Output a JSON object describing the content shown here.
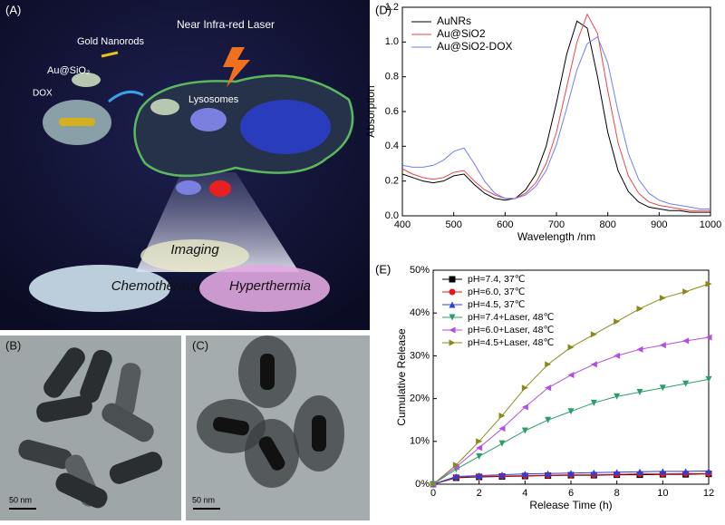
{
  "illustration": {
    "panel_label": "(A)",
    "gold_nanorods": "Gold Nanorods",
    "au_sio2": "Au@SiO₂",
    "dox": "DOX",
    "laser": "Near Infra-red Laser",
    "lysosomes": "Lysosomes",
    "imaging": "Imaging",
    "chemotherapy": "Chemotherapy",
    "hyperthermia": "Hyperthermia"
  },
  "micrographs": [
    {
      "panel_label": "(B)",
      "scale_bar": "50 nm"
    },
    {
      "panel_label": "(C)",
      "scale_bar": "50 nm"
    }
  ],
  "chart_data": [
    {
      "type": "line",
      "panel_label": "(D)",
      "x_label": "Wavelength /nm",
      "y_label": "Absorption",
      "x": [
        400,
        420,
        440,
        460,
        480,
        500,
        520,
        540,
        560,
        580,
        600,
        620,
        640,
        660,
        680,
        700,
        720,
        740,
        760,
        780,
        800,
        820,
        840,
        860,
        880,
        900,
        920,
        940,
        960,
        980,
        1000
      ],
      "series": [
        {
          "name": "AuNRs",
          "color": "#000000",
          "values": [
            0.24,
            0.22,
            0.2,
            0.19,
            0.2,
            0.23,
            0.24,
            0.18,
            0.13,
            0.1,
            0.09,
            0.1,
            0.15,
            0.24,
            0.4,
            0.65,
            0.93,
            1.12,
            1.08,
            0.8,
            0.48,
            0.26,
            0.14,
            0.08,
            0.05,
            0.04,
            0.03,
            0.03,
            0.02,
            0.02,
            0.02
          ]
        },
        {
          "name": "Au@SiO2",
          "color": "#e8474a",
          "values": [
            0.27,
            0.24,
            0.22,
            0.21,
            0.22,
            0.25,
            0.26,
            0.2,
            0.15,
            0.12,
            0.1,
            0.1,
            0.13,
            0.19,
            0.3,
            0.48,
            0.74,
            1.0,
            1.16,
            1.05,
            0.72,
            0.42,
            0.23,
            0.13,
            0.08,
            0.06,
            0.05,
            0.04,
            0.03,
            0.03,
            0.03
          ]
        },
        {
          "name": "Au@SiO2-DOX",
          "color": "#6f7ff0",
          "values": [
            0.29,
            0.28,
            0.28,
            0.29,
            0.32,
            0.37,
            0.39,
            0.3,
            0.2,
            0.13,
            0.1,
            0.1,
            0.12,
            0.17,
            0.26,
            0.41,
            0.62,
            0.84,
            0.99,
            1.03,
            0.88,
            0.6,
            0.36,
            0.21,
            0.13,
            0.09,
            0.07,
            0.06,
            0.05,
            0.04,
            0.04
          ]
        }
      ],
      "xlim": [
        400,
        1000
      ],
      "xticks": [
        400,
        500,
        600,
        700,
        800,
        900,
        1000
      ],
      "ylim": [
        0,
        1.2
      ],
      "yticks": [
        {
          "value": 0,
          "label": "0.0"
        },
        0.2,
        0.4,
        0.6,
        0.8,
        {
          "value": 1,
          "label": "1.0"
        },
        1.2
      ],
      "legend": "upper left",
      "grid": false
    },
    {
      "type": "line",
      "panel_label": "(E)",
      "x_label": "Release Time (h)",
      "y_label": "Cumulative Release",
      "x": [
        0,
        1,
        2,
        3,
        4,
        5,
        6,
        7,
        8,
        9,
        10,
        11,
        12
      ],
      "series": [
        {
          "name": "pH=7.4, 37℃",
          "color": "#000000",
          "marker": "square",
          "values": [
            0,
            1.5,
            1.7,
            1.8,
            1.9,
            2,
            2.1,
            2.1,
            2.2,
            2.2,
            2.3,
            2.3,
            2.4
          ]
        },
        {
          "name": "pH=6.0, 37℃",
          "color": "#e8141c",
          "marker": "circle",
          "values": [
            0,
            1.6,
            1.8,
            1.9,
            2,
            2.1,
            2.2,
            2.2,
            2.3,
            2.4,
            2.4,
            2.5,
            2.5
          ]
        },
        {
          "name": "pH=4.5, 37℃",
          "color": "#2b3fe0",
          "marker": "triangle-up",
          "values": [
            0,
            1.8,
            2,
            2.2,
            2.4,
            2.5,
            2.6,
            2.7,
            2.8,
            2.9,
            3,
            3,
            3.1
          ]
        },
        {
          "name": "pH=7.4+Laser, 48℃",
          "color": "#2a9e6a",
          "marker": "triangle-down",
          "values": [
            0,
            3.5,
            6.5,
            9.5,
            12.5,
            15,
            17,
            19,
            20.5,
            21.5,
            22.5,
            23.5,
            24.5
          ]
        },
        {
          "name": "pH=6.0+Laser, 48℃",
          "color": "#b44ee0",
          "marker": "triangle-left",
          "values": [
            0,
            4,
            8.5,
            13,
            18,
            22.5,
            25.5,
            28,
            30,
            31.5,
            32.5,
            33.5,
            34.3
          ]
        },
        {
          "name": "pH=4.5+Laser, 48℃",
          "color": "#8a8a1c",
          "marker": "triangle-right",
          "values": [
            0,
            4.5,
            10,
            16,
            22.5,
            28,
            32,
            35,
            38,
            41,
            43.5,
            45,
            46.8
          ]
        }
      ],
      "xlim": [
        0,
        12
      ],
      "xticks": [
        0,
        2,
        4,
        6,
        8,
        10,
        12
      ],
      "ylim": [
        0,
        50
      ],
      "yticks": [
        {
          "value": 0,
          "label": "0%"
        },
        {
          "value": 10,
          "label": "10%"
        },
        {
          "value": 20,
          "label": "20%"
        },
        {
          "value": 30,
          "label": "30%"
        },
        {
          "value": 40,
          "label": "40%"
        },
        {
          "value": 50,
          "label": "50%"
        }
      ],
      "legend": "upper left",
      "grid": false
    }
  ]
}
